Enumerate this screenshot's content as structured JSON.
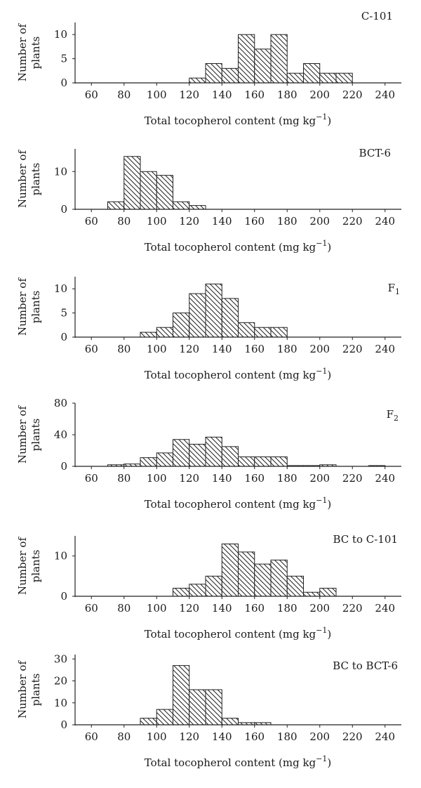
{
  "chart_data": [
    {
      "type": "bar",
      "panel_label": "C-101",
      "panel_label_sub": "",
      "ylabel_lines": [
        "Number of",
        "plants"
      ],
      "xlabel": "Total tocopherol content (mg kg",
      "xlabel_sup": "−1",
      "xlabel_end": ")",
      "xlim": [
        50,
        250
      ],
      "xticks": [
        60,
        80,
        100,
        120,
        140,
        160,
        180,
        200,
        220,
        240
      ],
      "ylim": [
        0,
        12.5
      ],
      "yticks": [
        0,
        5,
        10
      ],
      "bin_width": 10,
      "bin_starts": [
        120,
        130,
        140,
        150,
        160,
        170,
        180,
        190,
        200,
        210
      ],
      "values": [
        1,
        4,
        3,
        10,
        7,
        10,
        2,
        4,
        2,
        2
      ]
    },
    {
      "type": "bar",
      "panel_label": "BCT-6",
      "panel_label_sub": "",
      "ylabel_lines": [
        "Number of",
        "plants"
      ],
      "xlabel": "Total tocopherol content (mg kg",
      "xlabel_sup": "−1",
      "xlabel_end": ")",
      "xlim": [
        50,
        250
      ],
      "xticks": [
        60,
        80,
        100,
        120,
        140,
        160,
        180,
        200,
        220,
        240
      ],
      "ylim": [
        0,
        16
      ],
      "yticks": [
        0,
        10
      ],
      "bin_width": 10,
      "bin_starts": [
        70,
        80,
        90,
        100,
        110,
        120
      ],
      "values": [
        2,
        14,
        10,
        9,
        2,
        1
      ]
    },
    {
      "type": "bar",
      "panel_label": "F",
      "panel_label_sub": "1",
      "ylabel_lines": [
        "Number of",
        "plants"
      ],
      "xlabel": "Total tocopherol content (mg kg",
      "xlabel_sup": "−1",
      "xlabel_end": ")",
      "xlim": [
        50,
        250
      ],
      "xticks": [
        60,
        80,
        100,
        120,
        140,
        160,
        180,
        200,
        220,
        240
      ],
      "ylim": [
        0,
        12.5
      ],
      "yticks": [
        0,
        5,
        10
      ],
      "bin_width": 10,
      "bin_starts": [
        90,
        100,
        110,
        120,
        130,
        140,
        150,
        160,
        170
      ],
      "values": [
        1,
        2,
        5,
        9,
        11,
        8,
        3,
        2,
        2
      ]
    },
    {
      "type": "bar",
      "panel_label": "F",
      "panel_label_sub": "2",
      "ylabel_lines": [
        "Number of",
        "plants"
      ],
      "xlabel": "Total tocopherol content (mg kg",
      "xlabel_sup": "−1",
      "xlabel_end": ")",
      "xlim": [
        50,
        250
      ],
      "xticks": [
        60,
        80,
        100,
        120,
        140,
        160,
        180,
        200,
        220,
        240
      ],
      "ylim": [
        0,
        80
      ],
      "yticks": [
        0,
        40,
        80
      ],
      "bin_width": 10,
      "bin_starts": [
        70,
        80,
        90,
        100,
        110,
        120,
        130,
        140,
        150,
        160,
        170,
        180,
        190,
        200,
        230
      ],
      "values": [
        2,
        3,
        11,
        17,
        34,
        28,
        37,
        25,
        12,
        12,
        12,
        1,
        1,
        2,
        1
      ]
    },
    {
      "type": "bar",
      "panel_label": "BC to C-101",
      "panel_label_sub": "",
      "ylabel_lines": [
        "Number of",
        "plants"
      ],
      "xlabel": "Total tocopherol content (mg kg",
      "xlabel_sup": "−1",
      "xlabel_end": ")",
      "xlim": [
        50,
        250
      ],
      "xticks": [
        60,
        80,
        100,
        120,
        140,
        160,
        180,
        200,
        220,
        240
      ],
      "ylim": [
        0,
        15
      ],
      "yticks": [
        0,
        10
      ],
      "bin_width": 10,
      "bin_starts": [
        110,
        120,
        130,
        140,
        150,
        160,
        170,
        180,
        190,
        200
      ],
      "values": [
        2,
        3,
        5,
        13,
        11,
        8,
        9,
        5,
        1,
        2
      ]
    },
    {
      "type": "bar",
      "panel_label": "BC to BCT-6",
      "panel_label_sub": "",
      "ylabel_lines": [
        "Number of",
        "plants"
      ],
      "xlabel": "Total tocopherol content (mg kg",
      "xlabel_sup": "−1",
      "xlabel_end": ")",
      "xlim": [
        50,
        250
      ],
      "xticks": [
        60,
        80,
        100,
        120,
        140,
        160,
        180,
        200,
        220,
        240
      ],
      "ylim": [
        0,
        32
      ],
      "yticks": [
        0,
        10,
        20,
        30
      ],
      "bin_width": 10,
      "bin_starts": [
        90,
        100,
        110,
        120,
        130,
        140,
        150,
        160
      ],
      "values": [
        3,
        7,
        27,
        16,
        16,
        3,
        1,
        1
      ]
    }
  ]
}
